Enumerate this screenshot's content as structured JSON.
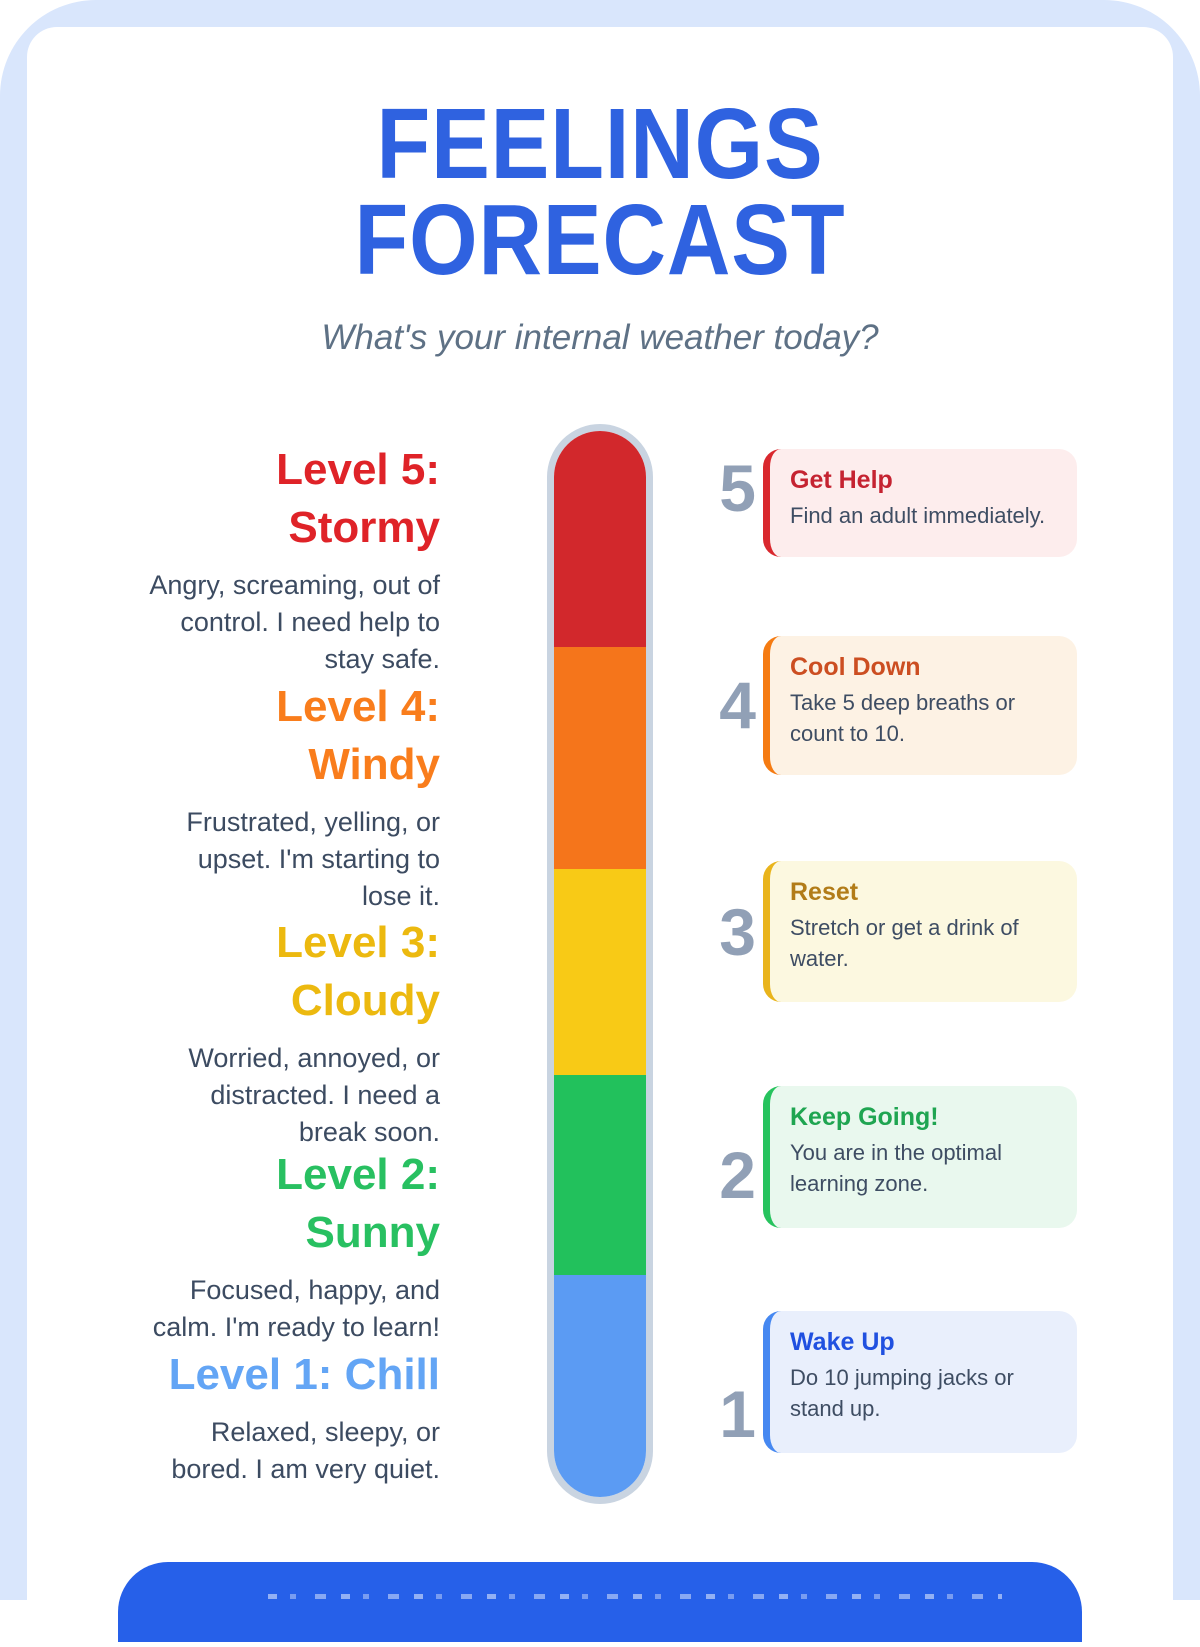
{
  "page": {
    "background_color": "#d9e6fc",
    "card_color": "#ffffff",
    "number_color": "#91a0b6"
  },
  "header": {
    "title_line1": "FEELINGS",
    "title_line2": "FORECAST",
    "title_color": "#2f62e0",
    "subtitle": "What's your internal weather today?",
    "subtitle_color": "#5e7185"
  },
  "levels": [
    {
      "heading_lines": [
        "Level 5:",
        "Stormy"
      ],
      "color": "#df2328",
      "description": "Angry, screaming, out of control. I need help to stay safe."
    },
    {
      "heading_lines": [
        "Level 4:",
        "Windy"
      ],
      "color": "#f97d1c",
      "description": "Frustrated, yelling, or upset. I'm starting to lose it."
    },
    {
      "heading_lines": [
        "Level 3:",
        "Cloudy"
      ],
      "color": "#ecb90f",
      "description": "Worried, annoyed, or distracted. I need a break soon."
    },
    {
      "heading_lines": [
        "Level 2:",
        "Sunny"
      ],
      "color": "#28c061",
      "description": "Focused, happy, and calm. I'm ready to learn!"
    },
    {
      "heading_lines": [
        "Level 1: Chill"
      ],
      "color": "#63a5f5",
      "description": "Relaxed, sleepy, or bored. I am very quiet."
    }
  ],
  "thermometer": {
    "border_color": "#c9d4e1",
    "segments": [
      {
        "name": "stormy",
        "color": "#d2282c"
      },
      {
        "name": "windy",
        "color": "#f5751b"
      },
      {
        "name": "cloudy",
        "color": "#f8ca16"
      },
      {
        "name": "sunny",
        "color": "#22c15c"
      },
      {
        "name": "chill",
        "color": "#5b9bf3"
      }
    ]
  },
  "action_cards": [
    {
      "number": "5",
      "title": "Get Help",
      "body": "Find an adult immediately.",
      "title_color": "#c52331",
      "accent_color": "#d9282e",
      "bg_color": "#fdeded"
    },
    {
      "number": "4",
      "title": "Cool Down",
      "body": "Take 5 deep breaths or count to 10.",
      "title_color": "#cc4e21",
      "accent_color": "#f57b12",
      "bg_color": "#fdf2e4"
    },
    {
      "number": "3",
      "title": "Reset",
      "body": "Stretch or get a drink of water.",
      "title_color": "#b27c18",
      "accent_color": "#e9b41c",
      "bg_color": "#fcf8e0"
    },
    {
      "number": "2",
      "title": "Keep Going!",
      "body": "You are in the optimal learning zone.",
      "title_color": "#1fa551",
      "accent_color": "#27c35e",
      "bg_color": "#e9f8ee"
    },
    {
      "number": "1",
      "title": "Wake Up",
      "body": "Do 10 jumping jacks or stand up.",
      "title_color": "#2050e0",
      "accent_color": "#4688f1",
      "bg_color": "#e9effc"
    }
  ],
  "footer_banner": {
    "bg_color": "#2660e9"
  }
}
